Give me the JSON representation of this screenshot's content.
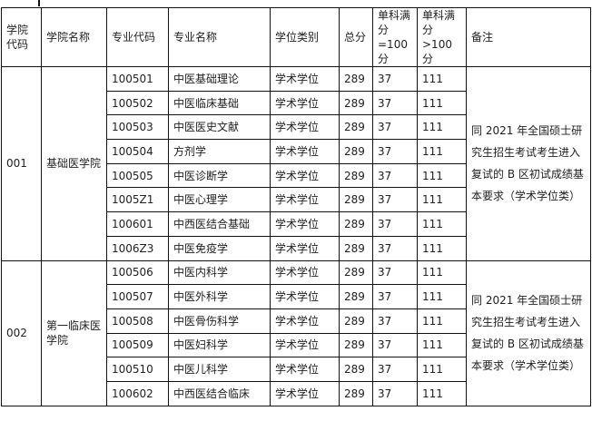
{
  "headers": [
    "学院代码",
    "学院名称",
    "专业代码",
    "专业名称",
    "学位类别",
    "总分",
    "单科满分=100分",
    "单科满分>100分",
    "备注"
  ],
  "groups": [
    {
      "college_code": "001",
      "college_name": "基础医学院",
      "note": "同 2021 年全国硕士研究生招生考试考生进入复试的 B 区初试成绩基本要求（学术学位类）",
      "rows": [
        [
          "100501",
          "中医基础理论",
          "学术学位",
          "289",
          "37",
          "111"
        ],
        [
          "100502",
          "中医临床基础",
          "学术学位",
          "289",
          "37",
          "111"
        ],
        [
          "100503",
          "中医医史文献",
          "学术学位",
          "289",
          "37",
          "111"
        ],
        [
          "100504",
          "方剂学",
          "学术学位",
          "289",
          "37",
          "111"
        ],
        [
          "100505",
          "中医诊断学",
          "学术学位",
          "289",
          "37",
          "111"
        ],
        [
          "1005Z1",
          "中医心理学",
          "学术学位",
          "289",
          "37",
          "111"
        ],
        [
          "100601",
          "中西医结合基础",
          "学术学位",
          "289",
          "37",
          "111"
        ],
        [
          "1006Z3",
          "中医免疫学",
          "学术学位",
          "289",
          "37",
          "111"
        ]
      ]
    },
    {
      "college_code": "002",
      "college_name": "第一临床医学院",
      "note": "同 2021 年全国硕士研究生招生考试考生进入复试的 B 区初试成绩基本要求（学术学位类）",
      "rows": [
        [
          "100506",
          "中医内科学",
          "学术学位",
          "289",
          "37",
          "111"
        ],
        [
          "100507",
          "中医外科学",
          "学术学位",
          "289",
          "37",
          "111"
        ],
        [
          "100508",
          "中医骨伤科学",
          "学术学位",
          "289",
          "37",
          "111"
        ],
        [
          "100509",
          "中医妇科学",
          "学术学位",
          "289",
          "37",
          "111"
        ],
        [
          "100510",
          "中医儿科学",
          "学术学位",
          "289",
          "37",
          "111"
        ],
        [
          "100602",
          "中西医结合临床",
          "学术学位",
          "289",
          "37",
          "111"
        ]
      ]
    }
  ]
}
